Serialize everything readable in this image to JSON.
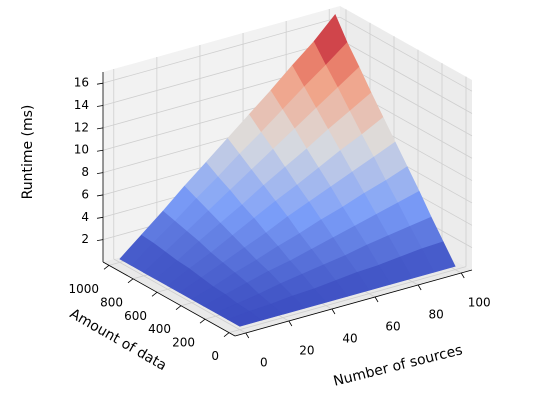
{
  "chart_data": {
    "type": "surface",
    "xlabel": "Number of sources",
    "ylabel": "Amount of data",
    "zlabel": "Runtime (ms)",
    "colormap": "coolwarm",
    "x": [
      0,
      10,
      20,
      30,
      40,
      50,
      60,
      70,
      80,
      90,
      100
    ],
    "y": [
      0,
      100,
      200,
      300,
      400,
      500,
      600,
      700,
      800,
      900,
      1000
    ],
    "z": [
      [
        0.3,
        0.3,
        0.3,
        0.3,
        0.3,
        0.3,
        0.3,
        0.3,
        0.3,
        0.3,
        0.3
      ],
      [
        0.3,
        0.5,
        0.6,
        0.8,
        0.9,
        1.1,
        1.3,
        1.4,
        1.6,
        1.8,
        1.9
      ],
      [
        0.3,
        0.6,
        0.9,
        1.3,
        1.6,
        1.9,
        2.2,
        2.6,
        2.9,
        3.2,
        3.5
      ],
      [
        0.3,
        0.8,
        1.3,
        1.8,
        2.2,
        2.7,
        3.2,
        3.7,
        4.2,
        4.7,
        5.2
      ],
      [
        0.3,
        0.9,
        1.6,
        2.2,
        2.9,
        3.5,
        4.2,
        4.8,
        5.5,
        6.1,
        6.8
      ],
      [
        0.3,
        1.1,
        1.9,
        2.7,
        3.5,
        4.4,
        5.2,
        6.0,
        6.8,
        7.6,
        8.4
      ],
      [
        0.3,
        1.3,
        2.2,
        3.2,
        4.2,
        5.2,
        6.1,
        7.1,
        8.1,
        9.0,
        10.0
      ],
      [
        0.3,
        1.4,
        2.6,
        3.7,
        4.8,
        6.0,
        7.1,
        8.2,
        9.4,
        10.5,
        11.6
      ],
      [
        0.3,
        1.6,
        2.9,
        4.2,
        5.5,
        6.8,
        8.1,
        9.4,
        10.7,
        12.0,
        13.3
      ],
      [
        0.3,
        1.8,
        3.2,
        4.7,
        6.1,
        7.6,
        9.0,
        10.5,
        12.0,
        13.4,
        14.9
      ],
      [
        0.3,
        1.9,
        3.5,
        5.2,
        6.8,
        8.4,
        10.0,
        11.6,
        13.3,
        14.9,
        16.8
      ]
    ],
    "xlim": [
      -5,
      105
    ],
    "ylim": [
      -50,
      1050
    ],
    "zlim": [
      0,
      17
    ],
    "xticks": [
      0,
      20,
      40,
      60,
      80,
      100
    ],
    "yticks": [
      0,
      200,
      400,
      600,
      800,
      1000
    ],
    "zticks": [
      2,
      4,
      6,
      8,
      10,
      12,
      14,
      16
    ],
    "grid": true
  }
}
